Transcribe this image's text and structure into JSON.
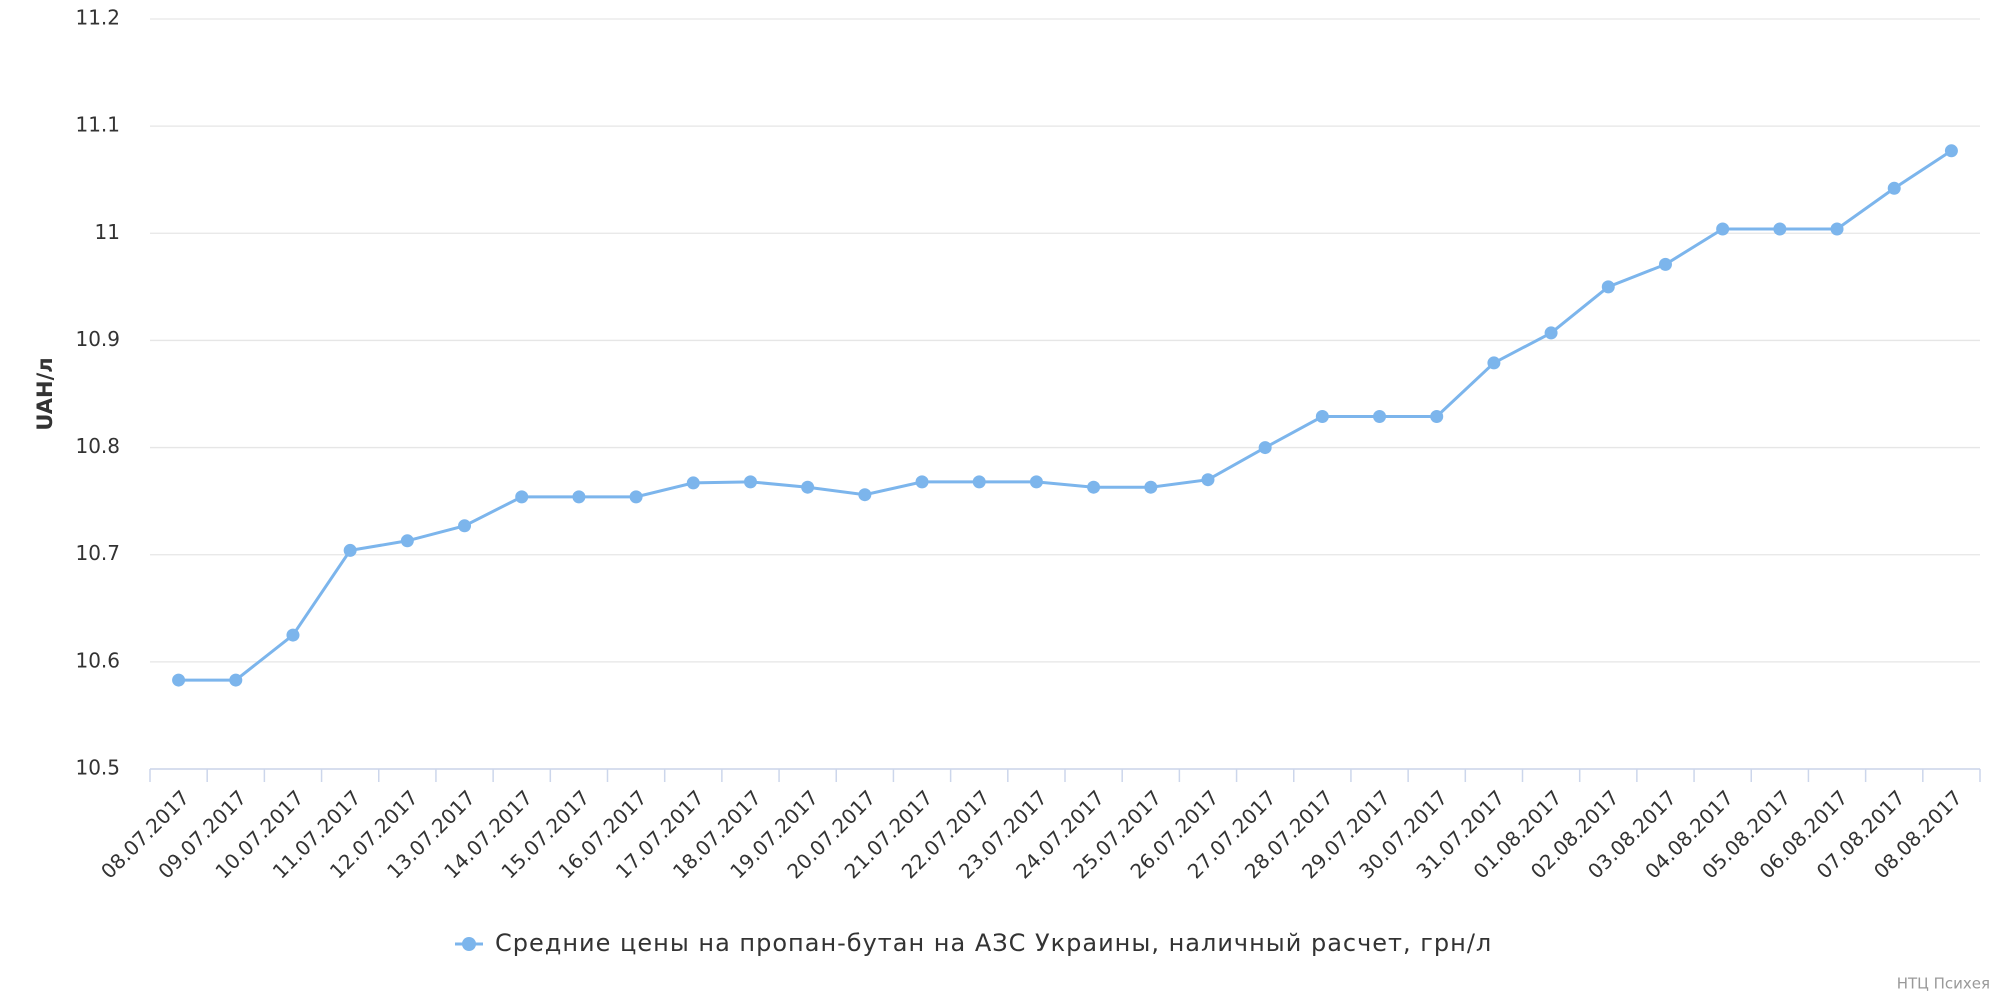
{
  "chart_data": {
    "type": "line",
    "y_label": "UAH/л",
    "credit": "НТЦ Психея",
    "categories": [
      "08.07.2017",
      "09.07.2017",
      "10.07.2017",
      "11.07.2017",
      "12.07.2017",
      "13.07.2017",
      "14.07.2017",
      "15.07.2017",
      "16.07.2017",
      "17.07.2017",
      "18.07.2017",
      "19.07.2017",
      "20.07.2017",
      "21.07.2017",
      "22.07.2017",
      "23.07.2017",
      "24.07.2017",
      "25.07.2017",
      "26.07.2017",
      "27.07.2017",
      "28.07.2017",
      "29.07.2017",
      "30.07.2017",
      "31.07.2017",
      "01.08.2017",
      "02.08.2017",
      "03.08.2017",
      "04.08.2017",
      "05.08.2017",
      "06.08.2017",
      "07.08.2017",
      "08.08.2017"
    ],
    "series": [
      {
        "name": "Средние цены на пропан-бутан на АЗС Украины, наличный расчет, грн/л",
        "color": "#7cb5ec",
        "values": [
          10.583,
          10.583,
          10.625,
          10.704,
          10.713,
          10.727,
          10.754,
          10.754,
          10.754,
          10.767,
          10.768,
          10.763,
          10.756,
          10.768,
          10.768,
          10.768,
          10.763,
          10.763,
          10.77,
          10.8,
          10.829,
          10.829,
          10.829,
          10.879,
          10.907,
          10.95,
          10.971,
          11.004,
          11.004,
          11.004,
          11.042,
          11.077
        ]
      }
    ],
    "ylim": [
      10.5,
      11.2
    ],
    "yticks": [
      10.5,
      10.6,
      10.7,
      10.8,
      10.9,
      11,
      11.1,
      11.2
    ],
    "grid": true
  }
}
